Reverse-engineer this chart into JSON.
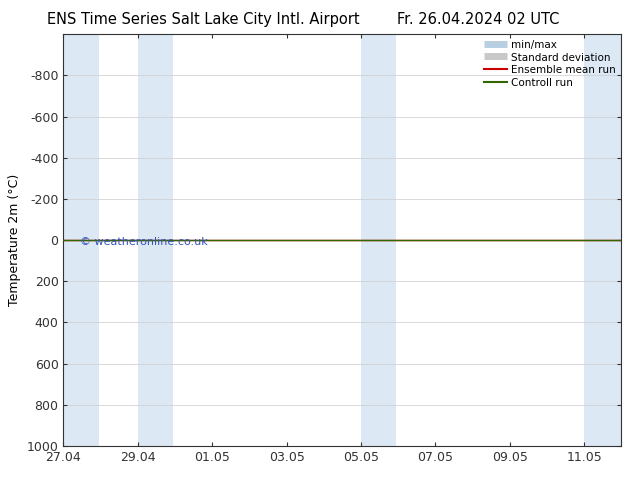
{
  "title_left": "ENS Time Series Salt Lake City Intl. Airport",
  "title_right": "Fr. 26.04.2024 02 UTC",
  "ylabel": "Temperature 2m (°C)",
  "watermark": "© weatheronline.co.uk",
  "ylim_bottom": 1000,
  "ylim_top": -1000,
  "yticks": [
    -800,
    -600,
    -400,
    -200,
    0,
    200,
    400,
    600,
    800,
    1000
  ],
  "xtick_labels": [
    "27.04",
    "29.04",
    "01.05",
    "03.05",
    "05.05",
    "07.05",
    "09.05",
    "11.05"
  ],
  "xtick_positions": [
    0,
    2,
    4,
    6,
    8,
    10,
    12,
    14
  ],
  "shade_bands": [
    [
      0.0,
      0.95
    ],
    [
      2.0,
      2.95
    ],
    [
      8.0,
      8.95
    ],
    [
      14.0,
      15.0
    ]
  ],
  "shade_color": "#dce9f5",
  "line_color_ensemble": "#cc0000",
  "line_color_control": "#336600",
  "bg_color": "#ffffff",
  "legend_minmax_color": "#b8cfe0",
  "legend_stddev_color": "#c8c8c8",
  "xmin": 0,
  "xmax": 15,
  "title_fontsize": 10.5,
  "tick_fontsize": 9,
  "ylabel_fontsize": 9
}
